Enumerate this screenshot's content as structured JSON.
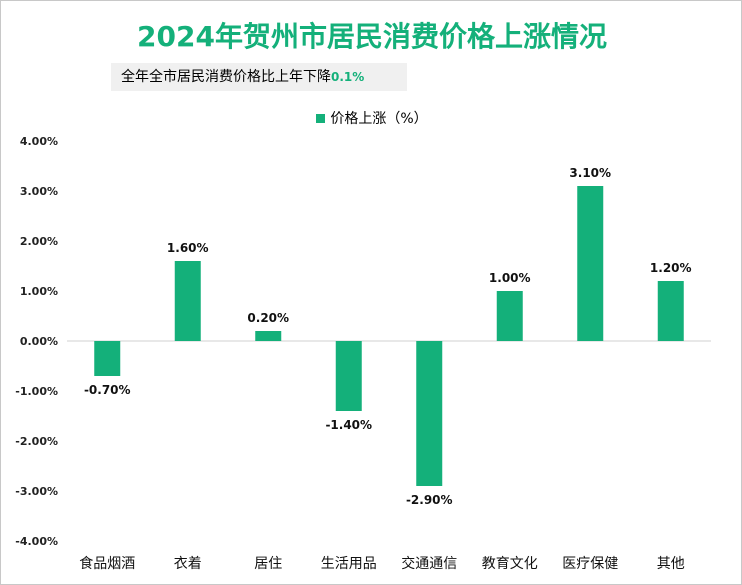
{
  "title": "2024年贺州市居民消费价格上涨情况",
  "subtitle": {
    "text": "全年全市居民消费价格比上年下降",
    "value": "0.1%"
  },
  "colors": {
    "bar": "#14b07a",
    "title": "#14b07a"
  },
  "chart_data": {
    "type": "bar",
    "title": "2024年贺州市居民消费价格上涨情况",
    "categories": [
      "食品烟酒",
      "衣着",
      "居住",
      "生活用品",
      "交通通信",
      "教育文化",
      "医疗保健",
      "其他"
    ],
    "series": [
      {
        "name": "价格上涨（%）",
        "values": [
          -0.7,
          1.6,
          0.2,
          -1.4,
          -2.9,
          1.0,
          3.1,
          1.2
        ]
      }
    ],
    "data_labels": [
      "-0.70%",
      "1.60%",
      "0.20%",
      "-1.40%",
      "-2.90%",
      "1.00%",
      "3.10%",
      "1.20%"
    ],
    "yticks": [
      "4.00%",
      "3.00%",
      "2.00%",
      "1.00%",
      "0.00%",
      "-1.00%",
      "-2.00%",
      "-3.00%",
      "-4.00%"
    ],
    "ylim": [
      -4,
      4
    ],
    "legend": "top",
    "grid": false
  }
}
